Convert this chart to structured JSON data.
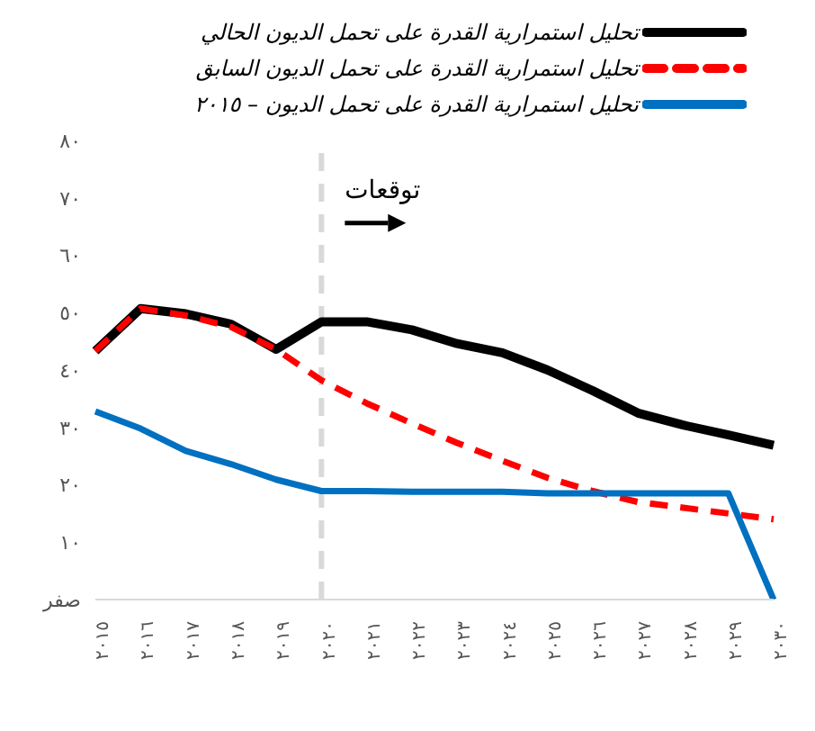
{
  "chart_data": {
    "type": "line",
    "categories": [
      "٢٠١٥",
      "٢٠١٦",
      "٢٠١٧",
      "٢٠١٨",
      "٢٠١٩",
      "٢٠٢٠",
      "٢٠٢١",
      "٢٠٢٢",
      "٢٠٢٣",
      "٢٠٢٤",
      "٢٠٢٥",
      "٢٠٢٦",
      "٢٠٢٧",
      "٢٠٢٨",
      "٢٠٢٩",
      "٢٠٣٠"
    ],
    "series": [
      {
        "name": "تحليل استمرارية القدرة على تحمل الديون الحالي",
        "color": "#000000",
        "line_style": "solid",
        "values": [
          43.3,
          50.7,
          49.8,
          48,
          43.6,
          48.4,
          48.4,
          47,
          44.6,
          43,
          40,
          36.4,
          32.5,
          30.4,
          28.7,
          26.9
        ]
      },
      {
        "name": "تحليل استمرارية القدرة على تحمل الديون السابق",
        "color": "#ff0000",
        "line_style": "dashed",
        "values": [
          43.3,
          50.7,
          49.5,
          47.5,
          43.6,
          38.2,
          34.2,
          30.7,
          27.3,
          24.2,
          21.2,
          18.9,
          17,
          16,
          15,
          14
        ]
      },
      {
        "name": "تحليل استمرارية القدرة على تحمل الديون – ٢٠١٥",
        "color": "#0070c0",
        "line_style": "solid",
        "values": [
          32.8,
          29.8,
          25.9,
          23.6,
          20.9,
          18.9,
          18.9,
          18.8,
          18.8,
          18.8,
          18.5,
          18.5,
          18.5,
          18.5,
          18.5,
          0
        ]
      }
    ],
    "ylim": [
      0,
      80
    ],
    "yticks": [
      {
        "value": 0,
        "label": "صفر"
      },
      {
        "value": 10,
        "label": "١٠"
      },
      {
        "value": 20,
        "label": "٢٠"
      },
      {
        "value": 30,
        "label": "٣٠"
      },
      {
        "value": 40,
        "label": "٤٠"
      },
      {
        "value": 50,
        "label": "٥٠"
      },
      {
        "value": 60,
        "label": "٦٠"
      },
      {
        "value": 70,
        "label": "٧٠"
      },
      {
        "value": 80,
        "label": "٨٠"
      }
    ],
    "ref_lines": [
      {
        "axis": "x",
        "value": "٢٠٢٠",
        "color": "#d9d9d9",
        "line_style": "dashed"
      }
    ],
    "annotations": [
      {
        "text": "توقعات",
        "x": "٢٠٢٠",
        "y": 70
      }
    ],
    "grid": false,
    "legend": "top right",
    "marker": "none"
  }
}
